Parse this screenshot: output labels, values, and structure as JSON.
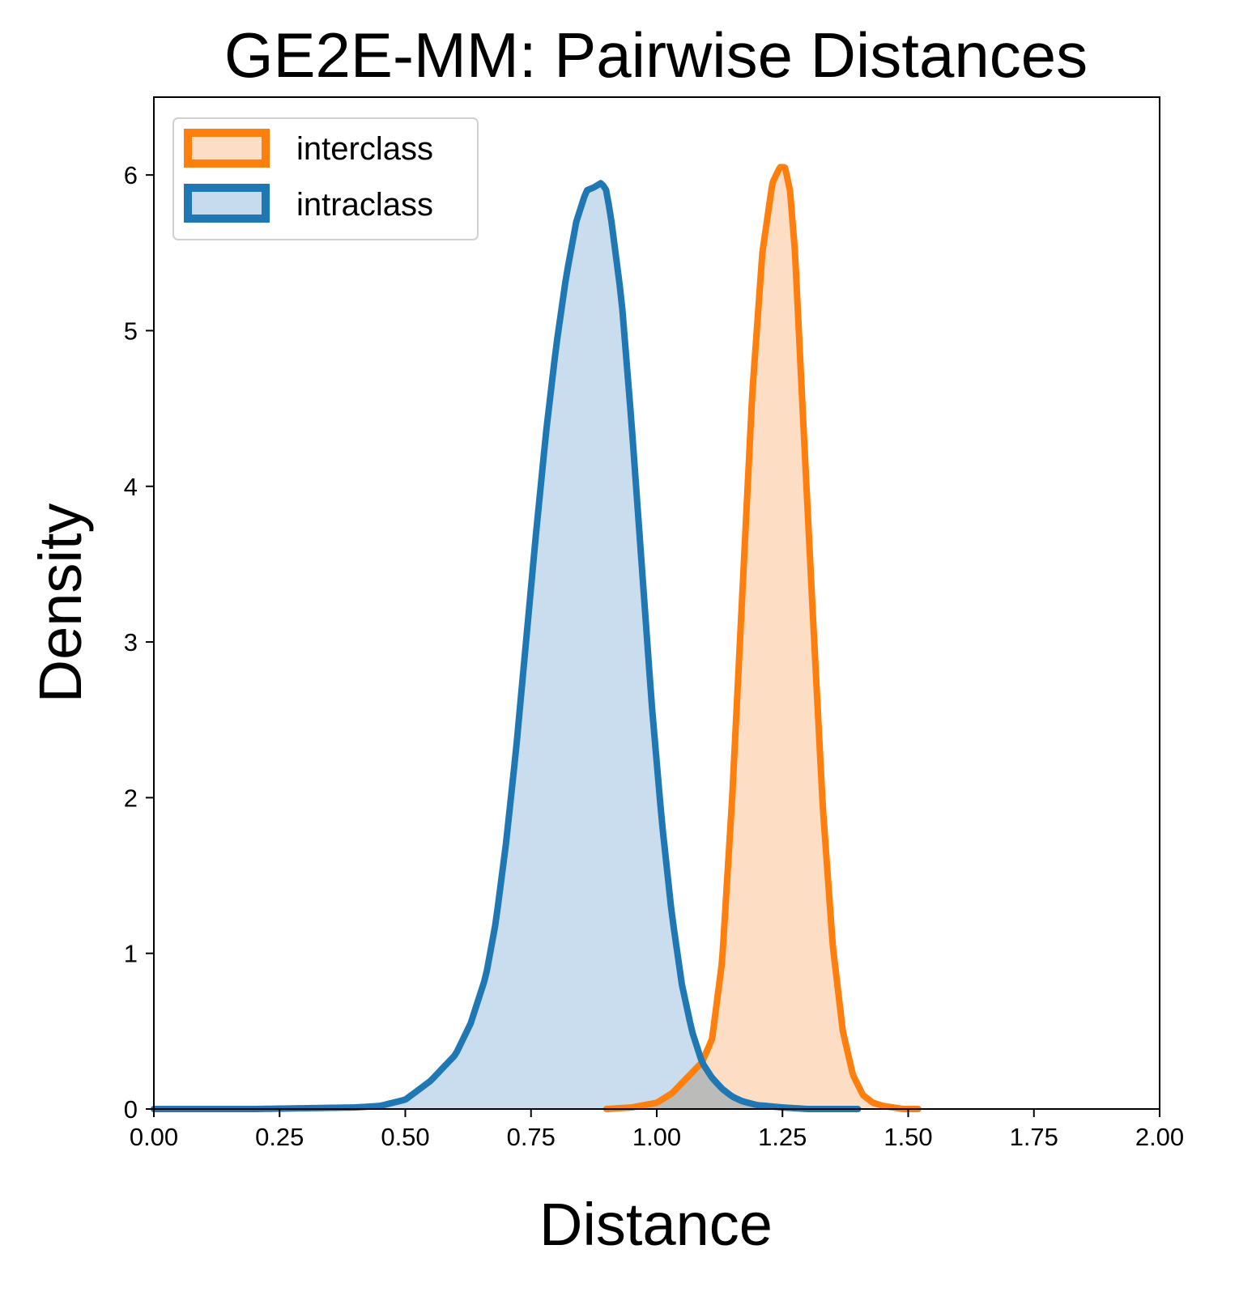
{
  "chart_data": {
    "type": "area",
    "title": "GE2E-MM: Pairwise Distances",
    "xlabel": "Distance",
    "ylabel": "Density",
    "xlim": [
      0,
      2
    ],
    "ylim": [
      0,
      6.5
    ],
    "xticks": [
      "0.00",
      "0.25",
      "0.50",
      "0.75",
      "1.00",
      "1.25",
      "1.50",
      "1.75",
      "2.00"
    ],
    "yticks": [
      "0",
      "1",
      "2",
      "3",
      "4",
      "5",
      "6"
    ],
    "grid": false,
    "legend": "top-left",
    "series": [
      {
        "name": "interclass",
        "color": "#ff7f0e",
        "fill": "#fdddc3",
        "x": [
          0.9,
          0.95,
          1.0,
          1.03,
          1.06,
          1.09,
          1.11,
          1.13,
          1.15,
          1.17,
          1.19,
          1.21,
          1.23,
          1.245,
          1.255,
          1.265,
          1.275,
          1.29,
          1.31,
          1.33,
          1.35,
          1.37,
          1.39,
          1.41,
          1.43,
          1.45,
          1.47,
          1.49,
          1.52
        ],
        "y": [
          0.0,
          0.01,
          0.04,
          0.1,
          0.2,
          0.3,
          0.45,
          0.95,
          2.0,
          3.3,
          4.6,
          5.5,
          5.95,
          6.05,
          6.05,
          5.9,
          5.5,
          4.5,
          3.2,
          1.95,
          1.05,
          0.5,
          0.22,
          0.09,
          0.04,
          0.02,
          0.01,
          0.0,
          0.0
        ]
      },
      {
        "name": "intraclass",
        "color": "#1f77b4",
        "fill": "#c6dbed",
        "x": [
          0.0,
          0.2,
          0.3,
          0.4,
          0.45,
          0.5,
          0.55,
          0.6,
          0.63,
          0.66,
          0.68,
          0.7,
          0.72,
          0.74,
          0.76,
          0.78,
          0.8,
          0.82,
          0.84,
          0.86,
          0.875,
          0.89,
          0.9,
          0.91,
          0.93,
          0.95,
          0.97,
          0.99,
          1.01,
          1.03,
          1.05,
          1.07,
          1.09,
          1.11,
          1.13,
          1.15,
          1.17,
          1.2,
          1.25,
          1.3,
          1.4
        ],
        "y": [
          0.0,
          0.0,
          0.005,
          0.01,
          0.02,
          0.06,
          0.18,
          0.35,
          0.55,
          0.85,
          1.2,
          1.7,
          2.3,
          3.0,
          3.7,
          4.35,
          4.9,
          5.35,
          5.7,
          5.9,
          5.92,
          5.95,
          5.9,
          5.7,
          5.2,
          4.4,
          3.5,
          2.6,
          1.85,
          1.25,
          0.8,
          0.5,
          0.3,
          0.2,
          0.13,
          0.08,
          0.05,
          0.025,
          0.01,
          0.0,
          0.0
        ]
      }
    ]
  }
}
